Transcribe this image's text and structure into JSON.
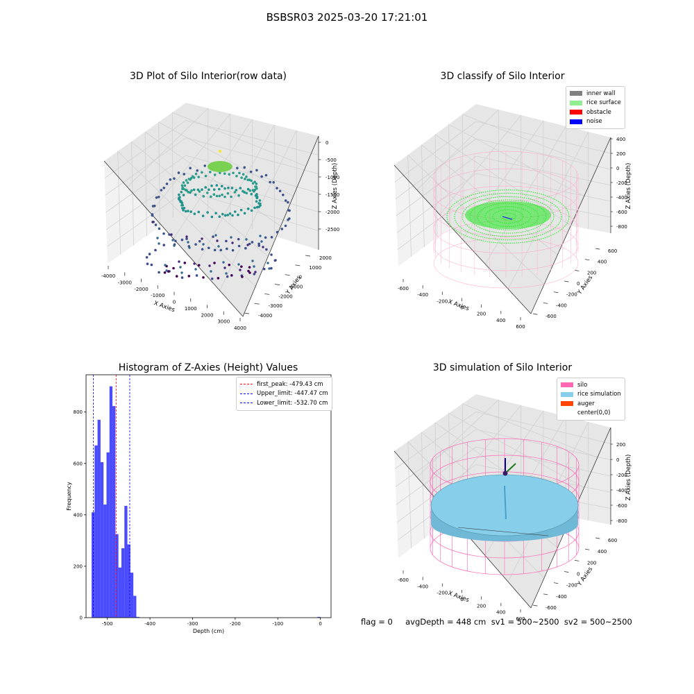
{
  "suptitle": "BSBSR03 2025-03-20 17:21:01",
  "panels": {
    "raw": {
      "title": "3D Plot of Silo Interior(row data)",
      "xlabel": "X Axies",
      "ylabel": "Y Axies",
      "zlabel": "Z Axies (Depth)",
      "xticks": [
        "-4000",
        "-3000",
        "-2000",
        "-1000",
        "0",
        "1000",
        "2000",
        "3000",
        "4000"
      ],
      "yticks": [
        "-4000",
        "-3000",
        "-2000",
        "-1000",
        "0",
        "1000",
        "2000"
      ],
      "zticks": [
        "0",
        "-500",
        "-1000",
        "-1500",
        "-2000",
        "-2500"
      ]
    },
    "classify": {
      "title": "3D classify of Silo Interior",
      "xlabel": "X Axies",
      "ylabel": "Y Axies",
      "zlabel": "Z Axies (Depth)",
      "xticks": [
        "-600",
        "-400",
        "-200",
        "0",
        "200",
        "400",
        "600"
      ],
      "yticks": [
        "-600",
        "-400",
        "-200",
        "0",
        "200",
        "400",
        "600"
      ],
      "zticks": [
        "400",
        "200",
        "0",
        "-200",
        "-400",
        "-600",
        "-800"
      ],
      "legend": [
        {
          "label": "inner wall",
          "color": "#808080"
        },
        {
          "label": "rice surface",
          "color": "#90ee90"
        },
        {
          "label": "obstacle",
          "color": "#ff0000"
        },
        {
          "label": "noise",
          "color": "#0000ff"
        }
      ]
    },
    "simulation": {
      "title": "3D simulation of Silo Interior",
      "xlabel": "X Axies",
      "ylabel": "Y Axies",
      "zlabel": "Z Axies (Depth)",
      "xticks": [
        "-600",
        "-400",
        "-200",
        "0",
        "200",
        "400",
        "600"
      ],
      "yticks": [
        "-600",
        "-400",
        "-200",
        "0",
        "200",
        "400",
        "600"
      ],
      "zticks": [
        "200",
        "0",
        "-200",
        "-400",
        "-600",
        "-800"
      ],
      "legend": [
        {
          "label": "silo",
          "color": "#ff69b4"
        },
        {
          "label": "rice simulation",
          "color": "#87ceeb"
        },
        {
          "label": "auger",
          "color": "#ff4500"
        },
        {
          "label": "center(0,0)",
          "color": "#ffffff"
        }
      ]
    }
  },
  "chart_data": {
    "type": "bar",
    "title": "Histogram of Z-Axies (Height) Values",
    "xlabel": "Depth (cm)",
    "ylabel": "Frequency",
    "xlim": [
      -550,
      25
    ],
    "ylim": [
      0,
      945
    ],
    "xticks": [
      -500,
      -400,
      -300,
      -200,
      -100,
      0
    ],
    "yticks": [
      0,
      200,
      400,
      600,
      800
    ],
    "bins": [
      {
        "x0": -537,
        "x1": -530,
        "count": 410
      },
      {
        "x0": -530,
        "x1": -523,
        "count": 670
      },
      {
        "x0": -523,
        "x1": -516,
        "count": 770
      },
      {
        "x0": -516,
        "x1": -509,
        "count": 605
      },
      {
        "x0": -509,
        "x1": -502,
        "count": 440
      },
      {
        "x0": -502,
        "x1": -495,
        "count": 643
      },
      {
        "x0": -495,
        "x1": -488,
        "count": 900
      },
      {
        "x0": -488,
        "x1": -481,
        "count": 823
      },
      {
        "x0": -481,
        "x1": -474,
        "count": 325
      },
      {
        "x0": -474,
        "x1": -467,
        "count": 195
      },
      {
        "x0": -467,
        "x1": -460,
        "count": 270
      },
      {
        "x0": -460,
        "x1": -453,
        "count": 435
      },
      {
        "x0": -453,
        "x1": -446,
        "count": 285
      },
      {
        "x0": -446,
        "x1": -439,
        "count": 175
      },
      {
        "x0": -439,
        "x1": -432,
        "count": 85
      },
      {
        "x0": -432,
        "x1": -425,
        "count": 3
      },
      {
        "x0": -7,
        "x1": 0,
        "count": 3
      }
    ],
    "bar_color": "#0000ff",
    "lines": [
      {
        "label": "first_peak: -479.43 cm",
        "x": -479.43,
        "color": "#ff0000"
      },
      {
        "label": "Upper_limit: -447.47 cm",
        "x": -447.47,
        "color": "#0000ff"
      },
      {
        "label": "Lower_limit: -532.70 cm",
        "x": -532.7,
        "color": "#0000ff"
      }
    ]
  },
  "footer": "flag = 0     avgDepth = 448 cm  sv1 = 500~2500  sv2 = 500~2500"
}
